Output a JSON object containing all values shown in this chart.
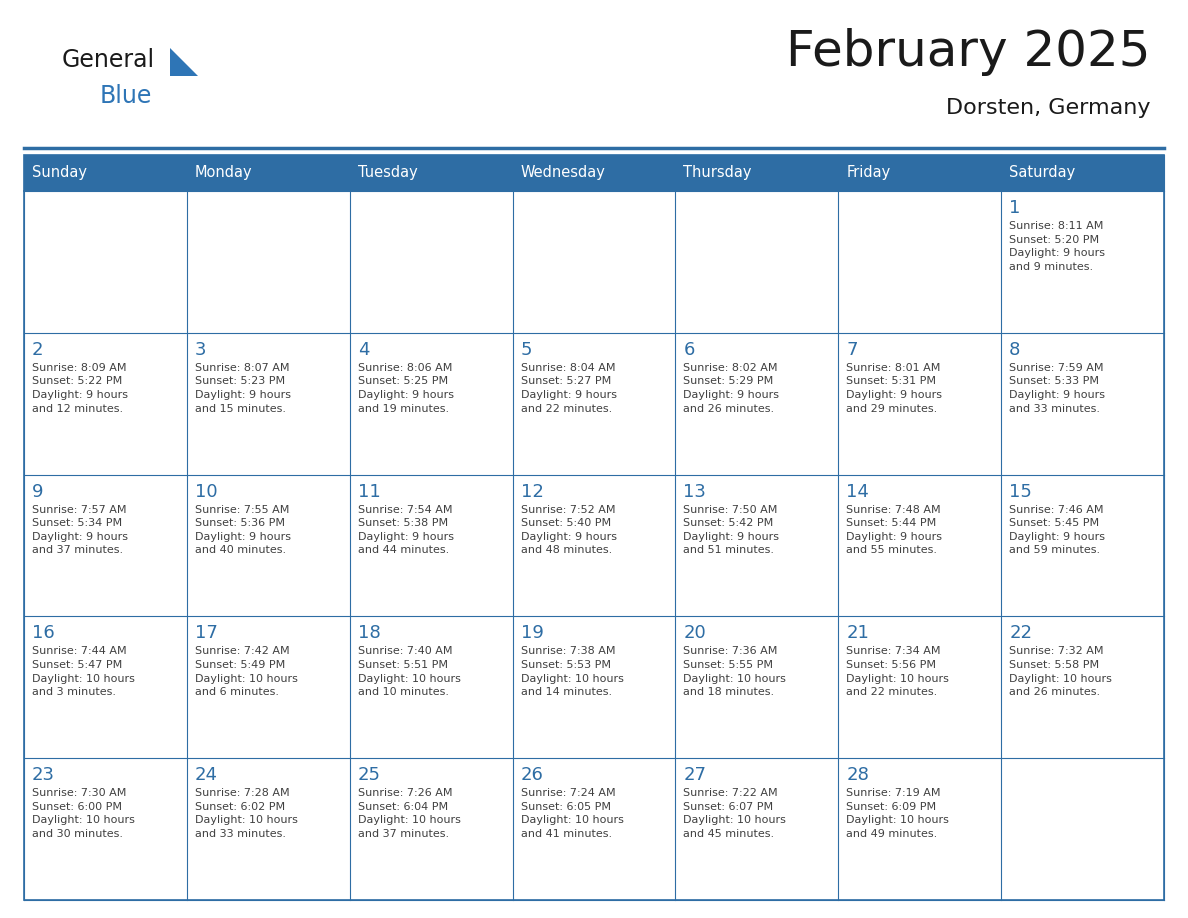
{
  "title": "February 2025",
  "subtitle": "Dorsten, Germany",
  "days_of_week": [
    "Sunday",
    "Monday",
    "Tuesday",
    "Wednesday",
    "Thursday",
    "Friday",
    "Saturday"
  ],
  "header_bg": "#2E6DA4",
  "header_text": "#FFFFFF",
  "border_color": "#2E6DA4",
  "day_number_color": "#2E6DA4",
  "text_color": "#404040",
  "logo_general_color": "#1a1a1a",
  "logo_blue_color": "#2E75B6",
  "cell_bg": "#FFFFFF",
  "title_color": "#1a1a1a",
  "subtitle_color": "#1a1a1a",
  "calendar_data": [
    [
      {
        "day": null,
        "info": null
      },
      {
        "day": null,
        "info": null
      },
      {
        "day": null,
        "info": null
      },
      {
        "day": null,
        "info": null
      },
      {
        "day": null,
        "info": null
      },
      {
        "day": null,
        "info": null
      },
      {
        "day": 1,
        "info": "Sunrise: 8:11 AM\nSunset: 5:20 PM\nDaylight: 9 hours\nand 9 minutes."
      }
    ],
    [
      {
        "day": 2,
        "info": "Sunrise: 8:09 AM\nSunset: 5:22 PM\nDaylight: 9 hours\nand 12 minutes."
      },
      {
        "day": 3,
        "info": "Sunrise: 8:07 AM\nSunset: 5:23 PM\nDaylight: 9 hours\nand 15 minutes."
      },
      {
        "day": 4,
        "info": "Sunrise: 8:06 AM\nSunset: 5:25 PM\nDaylight: 9 hours\nand 19 minutes."
      },
      {
        "day": 5,
        "info": "Sunrise: 8:04 AM\nSunset: 5:27 PM\nDaylight: 9 hours\nand 22 minutes."
      },
      {
        "day": 6,
        "info": "Sunrise: 8:02 AM\nSunset: 5:29 PM\nDaylight: 9 hours\nand 26 minutes."
      },
      {
        "day": 7,
        "info": "Sunrise: 8:01 AM\nSunset: 5:31 PM\nDaylight: 9 hours\nand 29 minutes."
      },
      {
        "day": 8,
        "info": "Sunrise: 7:59 AM\nSunset: 5:33 PM\nDaylight: 9 hours\nand 33 minutes."
      }
    ],
    [
      {
        "day": 9,
        "info": "Sunrise: 7:57 AM\nSunset: 5:34 PM\nDaylight: 9 hours\nand 37 minutes."
      },
      {
        "day": 10,
        "info": "Sunrise: 7:55 AM\nSunset: 5:36 PM\nDaylight: 9 hours\nand 40 minutes."
      },
      {
        "day": 11,
        "info": "Sunrise: 7:54 AM\nSunset: 5:38 PM\nDaylight: 9 hours\nand 44 minutes."
      },
      {
        "day": 12,
        "info": "Sunrise: 7:52 AM\nSunset: 5:40 PM\nDaylight: 9 hours\nand 48 minutes."
      },
      {
        "day": 13,
        "info": "Sunrise: 7:50 AM\nSunset: 5:42 PM\nDaylight: 9 hours\nand 51 minutes."
      },
      {
        "day": 14,
        "info": "Sunrise: 7:48 AM\nSunset: 5:44 PM\nDaylight: 9 hours\nand 55 minutes."
      },
      {
        "day": 15,
        "info": "Sunrise: 7:46 AM\nSunset: 5:45 PM\nDaylight: 9 hours\nand 59 minutes."
      }
    ],
    [
      {
        "day": 16,
        "info": "Sunrise: 7:44 AM\nSunset: 5:47 PM\nDaylight: 10 hours\nand 3 minutes."
      },
      {
        "day": 17,
        "info": "Sunrise: 7:42 AM\nSunset: 5:49 PM\nDaylight: 10 hours\nand 6 minutes."
      },
      {
        "day": 18,
        "info": "Sunrise: 7:40 AM\nSunset: 5:51 PM\nDaylight: 10 hours\nand 10 minutes."
      },
      {
        "day": 19,
        "info": "Sunrise: 7:38 AM\nSunset: 5:53 PM\nDaylight: 10 hours\nand 14 minutes."
      },
      {
        "day": 20,
        "info": "Sunrise: 7:36 AM\nSunset: 5:55 PM\nDaylight: 10 hours\nand 18 minutes."
      },
      {
        "day": 21,
        "info": "Sunrise: 7:34 AM\nSunset: 5:56 PM\nDaylight: 10 hours\nand 22 minutes."
      },
      {
        "day": 22,
        "info": "Sunrise: 7:32 AM\nSunset: 5:58 PM\nDaylight: 10 hours\nand 26 minutes."
      }
    ],
    [
      {
        "day": 23,
        "info": "Sunrise: 7:30 AM\nSunset: 6:00 PM\nDaylight: 10 hours\nand 30 minutes."
      },
      {
        "day": 24,
        "info": "Sunrise: 7:28 AM\nSunset: 6:02 PM\nDaylight: 10 hours\nand 33 minutes."
      },
      {
        "day": 25,
        "info": "Sunrise: 7:26 AM\nSunset: 6:04 PM\nDaylight: 10 hours\nand 37 minutes."
      },
      {
        "day": 26,
        "info": "Sunrise: 7:24 AM\nSunset: 6:05 PM\nDaylight: 10 hours\nand 41 minutes."
      },
      {
        "day": 27,
        "info": "Sunrise: 7:22 AM\nSunset: 6:07 PM\nDaylight: 10 hours\nand 45 minutes."
      },
      {
        "day": 28,
        "info": "Sunrise: 7:19 AM\nSunset: 6:09 PM\nDaylight: 10 hours\nand 49 minutes."
      },
      {
        "day": null,
        "info": null
      }
    ]
  ],
  "fig_width": 11.88,
  "fig_height": 9.18,
  "dpi": 100
}
